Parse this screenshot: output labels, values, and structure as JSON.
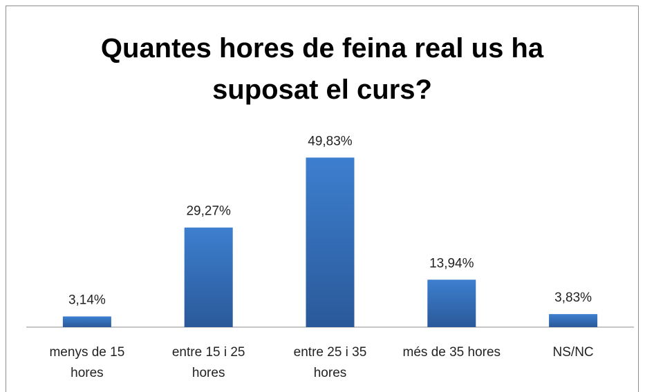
{
  "chart_data": {
    "type": "bar",
    "title": "Quantes hores de feina real us ha suposat el curs?",
    "categories": [
      "menys de 15 hores",
      "entre 15 i 25 hores",
      "entre 25 i 35 hores",
      "més de 35 hores",
      "NS/NC"
    ],
    "values": [
      3.14,
      29.27,
      49.83,
      13.94,
      3.83
    ],
    "value_labels": [
      "3,14%",
      "29,27%",
      "49,83%",
      "13,94%",
      "3,83%"
    ],
    "color": "#3a76c2"
  }
}
